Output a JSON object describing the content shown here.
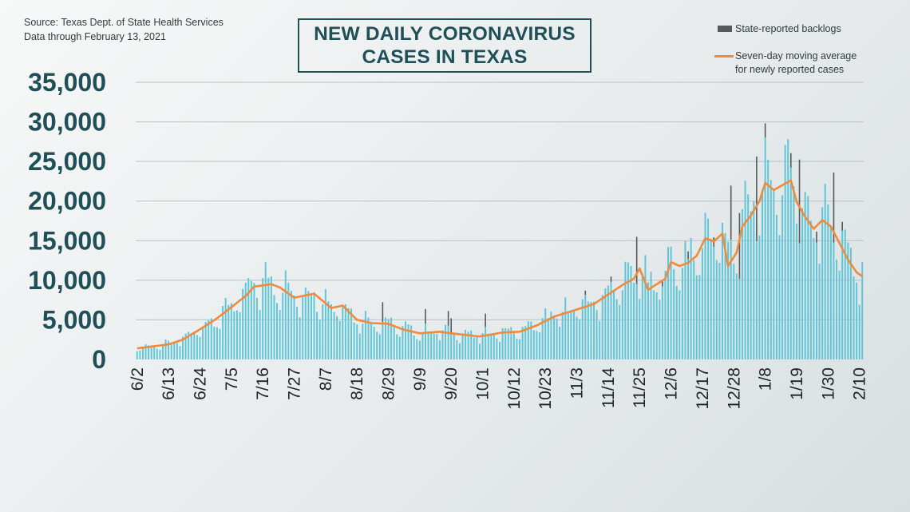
{
  "source": {
    "line1": "Source: Texas Dept. of State Health Services",
    "line2": "Data through  February 13, 2021"
  },
  "title": {
    "line1": "NEW DAILY CORONAVIRUS",
    "line2": "CASES IN TEXAS"
  },
  "legend": {
    "backlog_label": "State-reported backlogs",
    "average_label_line1": "Seven-day moving average",
    "average_label_line2": "for newly reported cases"
  },
  "colors": {
    "bar": "#5ec6d8",
    "backlog": "#55595c",
    "average": "#f08a3c",
    "title": "#1f5057"
  },
  "chart_data": {
    "type": "bar",
    "ylim": [
      0,
      35000
    ],
    "yticks": [
      0,
      5000,
      10000,
      15000,
      20000,
      25000,
      30000,
      35000
    ],
    "ytick_labels": [
      "0",
      "5,000",
      "10,000",
      "15,000",
      "20,000",
      "25,000",
      "30,000",
      "35,000"
    ],
    "xtick_labels": [
      "6/2",
      "6/13",
      "6/24",
      "7/5",
      "7/16",
      "7/27",
      "8/7",
      "8/18",
      "8/29",
      "9/9",
      "9/20",
      "10/1",
      "10/12",
      "10/23",
      "11/3",
      "11/14",
      "11/25",
      "12/6",
      "12/17",
      "12/28",
      "1/8",
      "1/19",
      "1/30",
      "2/10"
    ],
    "xtick_day_index": [
      0,
      11,
      22,
      33,
      44,
      55,
      66,
      77,
      88,
      99,
      110,
      121,
      132,
      143,
      154,
      165,
      176,
      187,
      198,
      209,
      220,
      231,
      242,
      253
    ],
    "series": [
      {
        "name": "Seven-day moving average for newly reported cases",
        "type": "line",
        "points": [
          [
            0,
            1400
          ],
          [
            11,
            1900
          ],
          [
            16,
            2500
          ],
          [
            22,
            3800
          ],
          [
            28,
            5200
          ],
          [
            33,
            6600
          ],
          [
            38,
            8000
          ],
          [
            41,
            9200
          ],
          [
            47,
            9500
          ],
          [
            50,
            9100
          ],
          [
            55,
            7800
          ],
          [
            62,
            8300
          ],
          [
            68,
            6500
          ],
          [
            72,
            6800
          ],
          [
            77,
            5000
          ],
          [
            82,
            4600
          ],
          [
            88,
            4500
          ],
          [
            93,
            3800
          ],
          [
            99,
            3300
          ],
          [
            106,
            3500
          ],
          [
            110,
            3300
          ],
          [
            115,
            3100
          ],
          [
            120,
            2900
          ],
          [
            128,
            3400
          ],
          [
            134,
            3500
          ],
          [
            140,
            4300
          ],
          [
            146,
            5400
          ],
          [
            154,
            6300
          ],
          [
            160,
            7000
          ],
          [
            165,
            8200
          ],
          [
            170,
            9400
          ],
          [
            174,
            10200
          ],
          [
            176,
            11500
          ],
          [
            179,
            8800
          ],
          [
            182,
            9500
          ],
          [
            185,
            10200
          ],
          [
            187,
            12300
          ],
          [
            190,
            11800
          ],
          [
            193,
            12200
          ],
          [
            196,
            13100
          ],
          [
            199,
            15300
          ],
          [
            202,
            14900
          ],
          [
            205,
            15900
          ],
          [
            207,
            11800
          ],
          [
            210,
            13500
          ],
          [
            212,
            16800
          ],
          [
            215,
            18200
          ],
          [
            218,
            20000
          ],
          [
            220,
            22300
          ],
          [
            223,
            21400
          ],
          [
            226,
            22000
          ],
          [
            229,
            22600
          ],
          [
            231,
            19900
          ],
          [
            234,
            18000
          ],
          [
            237,
            16500
          ],
          [
            240,
            17600
          ],
          [
            243,
            16800
          ],
          [
            246,
            14700
          ],
          [
            249,
            12600
          ],
          [
            252,
            11000
          ],
          [
            254,
            10500
          ]
        ]
      },
      {
        "name": "State-reported backlogs",
        "type": "bar",
        "note_days": [
          86,
          101,
          109,
          110,
          122,
          175,
          208,
          211,
          217,
          232,
          244
        ]
      }
    ]
  }
}
